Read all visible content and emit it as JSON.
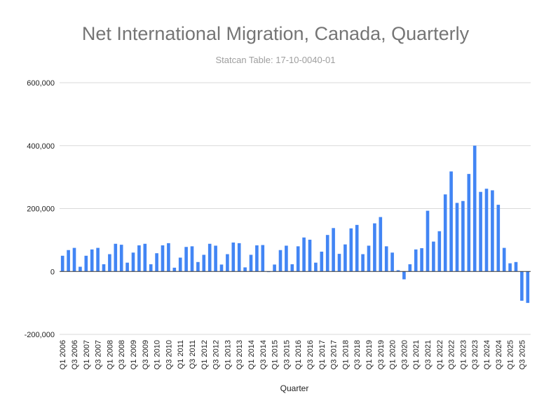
{
  "chart_data": {
    "type": "bar",
    "title": "Net International Migration, Canada, Quarterly",
    "subtitle": "Statcan Table: 17-10-0040-01",
    "xlabel": "Quarter",
    "ylabel": "",
    "ylim": [
      -200000,
      600000
    ],
    "yticks": [
      -200000,
      0,
      200000,
      400000,
      600000
    ],
    "ytick_labels": [
      "-200,000",
      "0",
      "200,000",
      "400,000",
      "600,000"
    ],
    "grid": true,
    "legend": "none",
    "bar_color": "#4285f4",
    "categories": [
      "Q1 2006",
      "Q2 2006",
      "Q3 2006",
      "Q4 2006",
      "Q1 2007",
      "Q2 2007",
      "Q3 2007",
      "Q4 2007",
      "Q1 2008",
      "Q2 2008",
      "Q3 2008",
      "Q4 2008",
      "Q1 2009",
      "Q2 2009",
      "Q3 2009",
      "Q4 2009",
      "Q1 2010",
      "Q2 2010",
      "Q3 2010",
      "Q4 2010",
      "Q1 2011",
      "Q2 2011",
      "Q3 2011",
      "Q4 2011",
      "Q1 2012",
      "Q2 2012",
      "Q3 2012",
      "Q4 2012",
      "Q1 2013",
      "Q2 2013",
      "Q3 2013",
      "Q4 2013",
      "Q1 2014",
      "Q2 2014",
      "Q3 2014",
      "Q4 2014",
      "Q1 2015",
      "Q2 2015",
      "Q3 2015",
      "Q4 2015",
      "Q1 2016",
      "Q2 2016",
      "Q3 2016",
      "Q4 2016",
      "Q1 2017",
      "Q2 2017",
      "Q3 2017",
      "Q4 2017",
      "Q1 2018",
      "Q2 2018",
      "Q3 2018",
      "Q4 2018",
      "Q1 2019",
      "Q2 2019",
      "Q3 2019",
      "Q4 2019",
      "Q1 2020",
      "Q2 2020",
      "Q3 2020",
      "Q4 2020",
      "Q1 2021",
      "Q2 2021",
      "Q3 2021",
      "Q4 2021",
      "Q1 2022",
      "Q2 2022",
      "Q3 2022",
      "Q4 2022",
      "Q1 2023",
      "Q2 2023",
      "Q3 2023",
      "Q4 2023",
      "Q1 2024",
      "Q2 2024",
      "Q3 2024",
      "Q4 2024",
      "Q1 2025",
      "Q2 2025",
      "Q3 2025",
      "Q4 2025"
    ],
    "shown_tick_labels": [
      "Q1 2006",
      "Q3 2006",
      "Q1 2007",
      "Q3 2007",
      "Q1 2008",
      "Q3 2008",
      "Q1 2009",
      "Q3 2009",
      "Q1 2010",
      "Q3 2010",
      "Q1 2011",
      "Q3 2011",
      "Q1 2012",
      "Q3 2012",
      "Q1 2013",
      "Q3 2013",
      "Q1 2014",
      "Q3 2014",
      "Q1 2015",
      "Q3 2015",
      "Q1 2016",
      "Q3 2016",
      "Q1 2017",
      "Q3 2017",
      "Q1 2018",
      "Q3 2018",
      "Q1 2019",
      "Q3 2019",
      "Q1 2020",
      "Q3 2020",
      "Q1 2021",
      "Q3 2021",
      "Q1 2022",
      "Q3 2022",
      "Q1 2023",
      "Q3 2023",
      "Q1 2024",
      "Q3 2024",
      "Q1 2025",
      "Q3 2025"
    ],
    "values": [
      50000,
      68000,
      75000,
      15000,
      50000,
      70000,
      75000,
      23000,
      55000,
      88000,
      85000,
      28000,
      60000,
      83000,
      88000,
      23000,
      58000,
      83000,
      90000,
      12000,
      44000,
      78000,
      80000,
      30000,
      53000,
      88000,
      82000,
      22000,
      55000,
      92000,
      90000,
      13000,
      53000,
      83000,
      84000,
      -2000,
      22000,
      68000,
      82000,
      23000,
      80000,
      108000,
      101000,
      28000,
      63000,
      116000,
      138000,
      56000,
      86000,
      137000,
      148000,
      55000,
      82000,
      153000,
      173000,
      80000,
      60000,
      4000,
      -25000,
      23000,
      70000,
      74000,
      193000,
      95000,
      128000,
      245000,
      318000,
      218000,
      224000,
      310000,
      400000,
      253000,
      263000,
      258000,
      212000,
      75000,
      26000,
      30000,
      -93000,
      -100000
    ]
  }
}
